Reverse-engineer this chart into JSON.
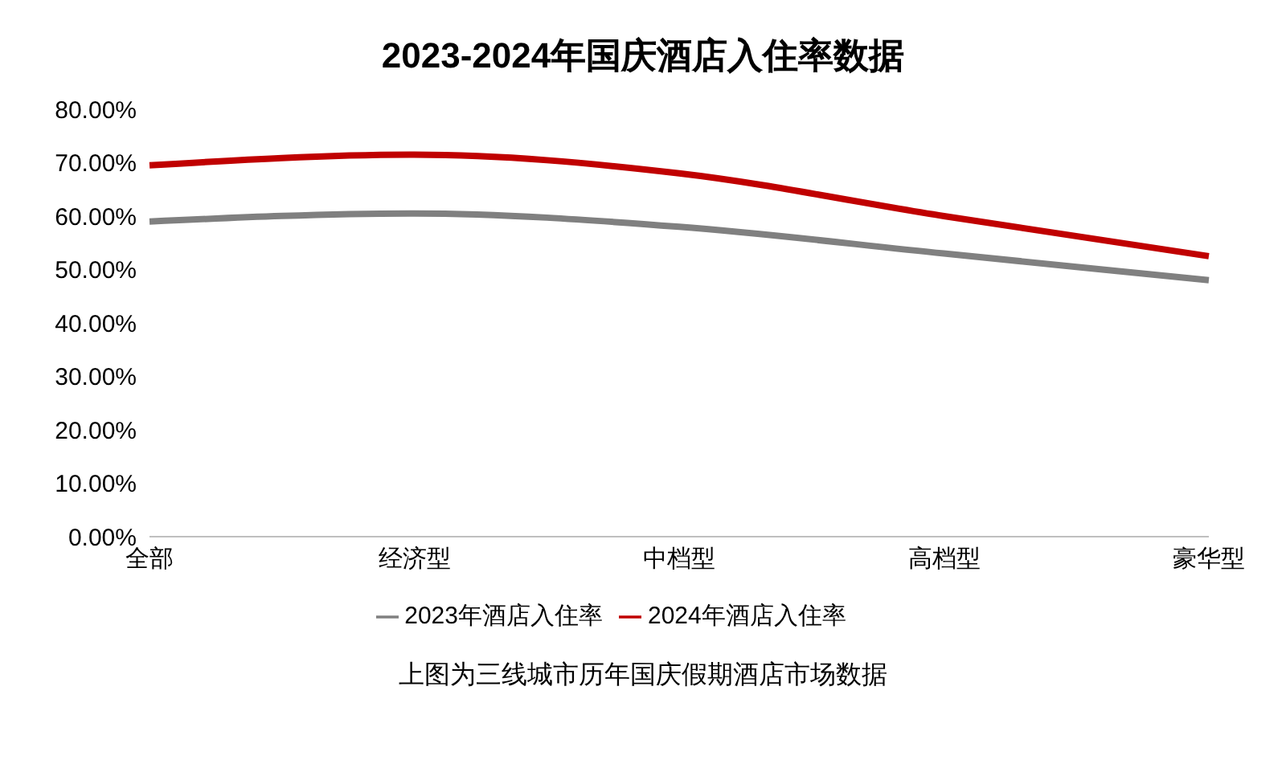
{
  "chart_data": {
    "type": "line",
    "title": "2023-2024年国庆酒店入住率数据",
    "categories": [
      "全部",
      "经济型",
      "中档型",
      "高档型",
      "豪华型"
    ],
    "series": [
      {
        "name": "2023年酒店入住率",
        "color": "#808080",
        "values": [
          59,
          60.5,
          58,
          53,
          48
        ]
      },
      {
        "name": "2024年酒店入住率",
        "color": "#c00000",
        "values": [
          69.5,
          71.5,
          68,
          60,
          52.5
        ]
      }
    ],
    "ylim": [
      0,
      80
    ],
    "yticks": [
      {
        "value": 0,
        "label": "0.00%"
      },
      {
        "value": 10,
        "label": "10.00%"
      },
      {
        "value": 20,
        "label": "20.00%"
      },
      {
        "value": 30,
        "label": "30.00%"
      },
      {
        "value": 40,
        "label": "40.00%"
      },
      {
        "value": 50,
        "label": "50.00%"
      },
      {
        "value": 60,
        "label": "60.00%"
      },
      {
        "value": 70,
        "label": "70.00%"
      },
      {
        "value": 80,
        "label": "80.00%"
      }
    ],
    "grid": false,
    "legend": "bottom",
    "marker": "none",
    "line_style": "solid",
    "annotations": [
      "上图为三线城市历年国庆假期酒店市场数据"
    ]
  }
}
